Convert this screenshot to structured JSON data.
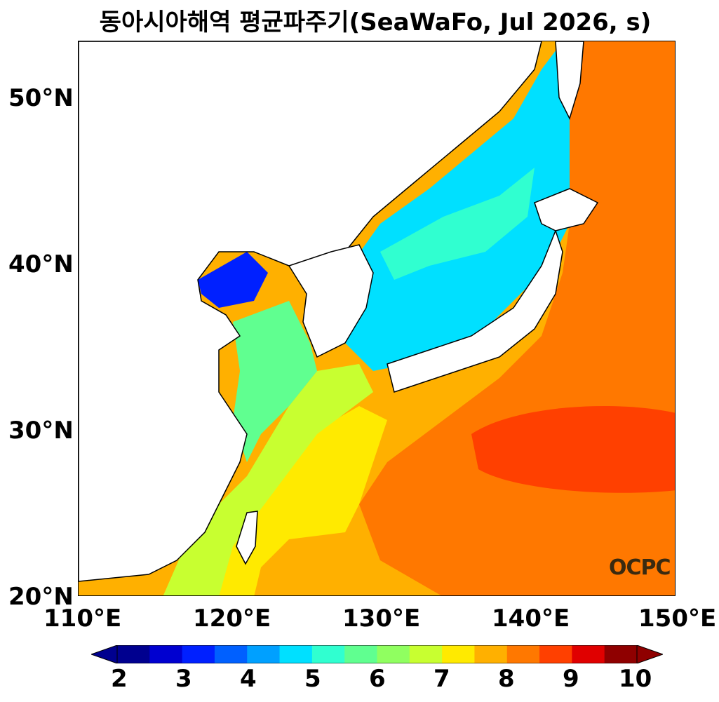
{
  "title": "동아시아해역 평균파주기(SeaWaFo, Jul 2026, s)",
  "y_axis": {
    "labels": [
      "50°N",
      "40°N",
      "30°N",
      "20°N"
    ]
  },
  "x_axis": {
    "labels": [
      "110°E",
      "120°E",
      "130°E",
      "140°E",
      "150°E"
    ]
  },
  "colorbar": {
    "labels": [
      "2",
      "3",
      "4",
      "5",
      "6",
      "7",
      "8",
      "9",
      "10"
    ],
    "colors": [
      "#00008f",
      "#0000d0",
      "#0020ff",
      "#0060ff",
      "#00a0ff",
      "#00e0ff",
      "#30ffd0",
      "#60ff90",
      "#90ff60",
      "#c8ff30",
      "#ffea00",
      "#ffb000",
      "#ff7800",
      "#ff4000",
      "#e00000",
      "#8f0000"
    ],
    "under_color": "#00008f",
    "over_color": "#8f0000"
  },
  "logo": "OCPC"
}
